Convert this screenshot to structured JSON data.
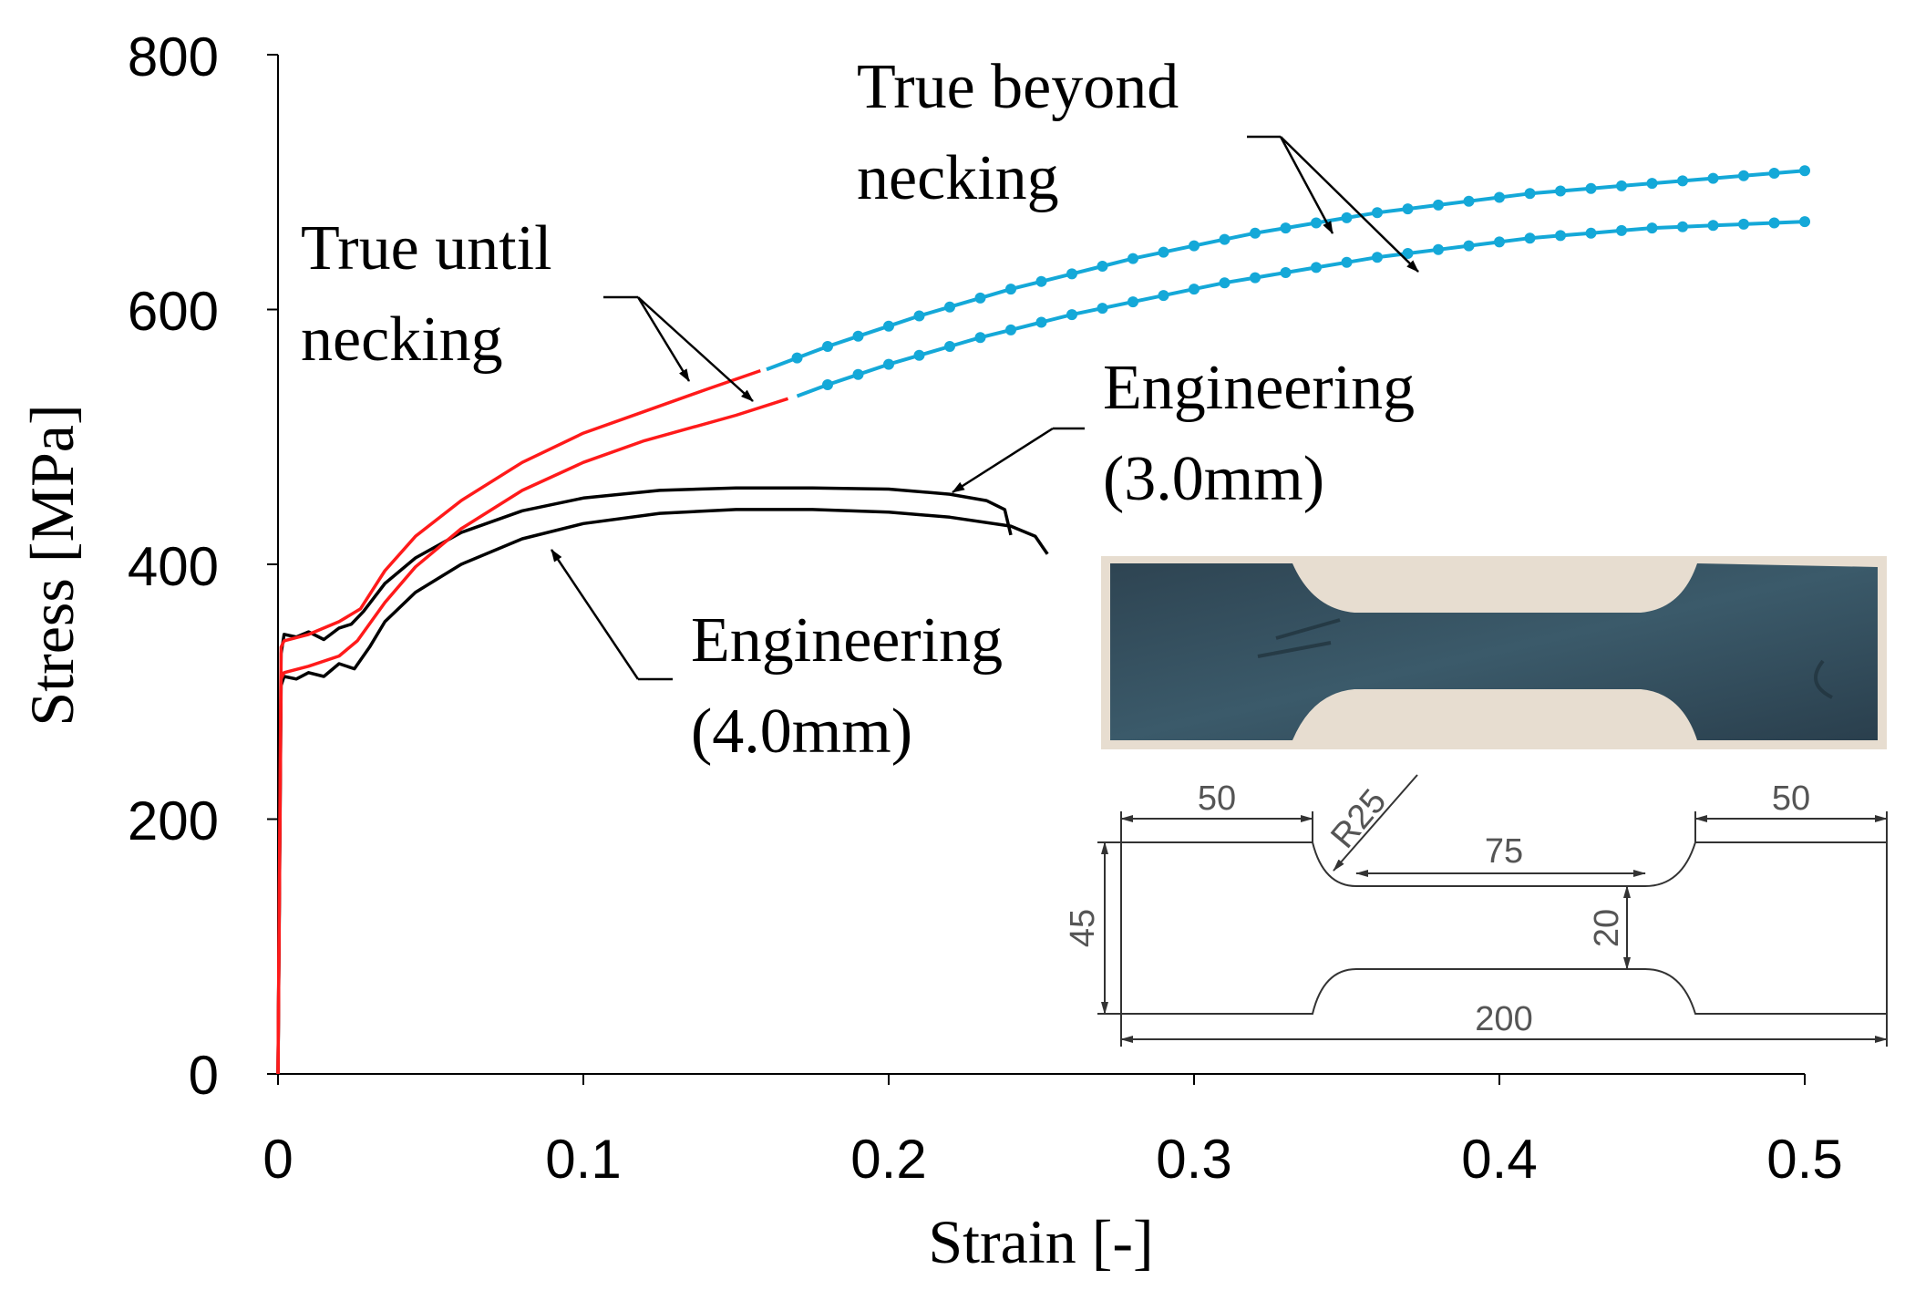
{
  "chart_data": {
    "type": "line",
    "xlabel": "Strain [-]",
    "ylabel": "Stress [MPa]",
    "xlim": [
      0,
      0.5
    ],
    "ylim": [
      0,
      800
    ],
    "xticks": [
      "0",
      "0.1",
      "0.2",
      "0.3",
      "0.4",
      "0.5"
    ],
    "yticks": [
      "0",
      "200",
      "400",
      "600",
      "800"
    ],
    "grid": false,
    "colors": {
      "engineering": "#000000",
      "true_until": "#ff1a1a",
      "true_beyond": "#14a8d8"
    },
    "series": [
      {
        "group": "engineering",
        "x": [
          0,
          0.001,
          0.002,
          0.006,
          0.01,
          0.015,
          0.02,
          0.024,
          0.028,
          0.035,
          0.045,
          0.06,
          0.08,
          0.1,
          0.125,
          0.15,
          0.175,
          0.2,
          0.22,
          0.232,
          0.238,
          0.24
        ],
        "y": [
          0,
          330,
          345,
          343,
          347,
          341,
          350,
          353,
          363,
          385,
          405,
          425,
          442,
          452,
          458,
          460,
          460,
          459,
          455,
          450,
          443,
          423
        ]
      },
      {
        "group": "engineering",
        "x": [
          0,
          0.001,
          0.002,
          0.006,
          0.01,
          0.015,
          0.02,
          0.025,
          0.03,
          0.035,
          0.045,
          0.06,
          0.08,
          0.1,
          0.125,
          0.15,
          0.175,
          0.2,
          0.22,
          0.24,
          0.248,
          0.252
        ],
        "y": [
          0,
          305,
          312,
          310,
          315,
          312,
          322,
          318,
          335,
          355,
          378,
          400,
          420,
          432,
          440,
          443,
          443,
          441,
          437,
          430,
          422,
          408
        ]
      },
      {
        "group": "true_until",
        "x": [
          0,
          0.001,
          0.002,
          0.01,
          0.02,
          0.027,
          0.035,
          0.045,
          0.06,
          0.08,
          0.1,
          0.12,
          0.14,
          0.158
        ],
        "y": [
          0,
          335,
          340,
          345,
          355,
          365,
          395,
          422,
          450,
          480,
          503,
          520,
          537,
          552
        ]
      },
      {
        "group": "true_until",
        "x": [
          0,
          0.001,
          0.002,
          0.01,
          0.02,
          0.026,
          0.035,
          0.045,
          0.06,
          0.08,
          0.1,
          0.12,
          0.15,
          0.167
        ],
        "y": [
          0,
          310,
          315,
          320,
          328,
          340,
          370,
          398,
          428,
          458,
          480,
          497,
          517,
          530
        ]
      },
      {
        "group": "true_beyond",
        "x": [
          0.16,
          0.17,
          0.18,
          0.19,
          0.2,
          0.21,
          0.22,
          0.23,
          0.24,
          0.25,
          0.26,
          0.27,
          0.28,
          0.29,
          0.3,
          0.31,
          0.32,
          0.33,
          0.34,
          0.35,
          0.36,
          0.37,
          0.38,
          0.39,
          0.4,
          0.41,
          0.42,
          0.43,
          0.44,
          0.45,
          0.46,
          0.47,
          0.48,
          0.49,
          0.5
        ],
        "y": [
          553,
          562,
          571,
          579,
          587,
          595,
          602,
          609,
          616,
          622,
          628,
          634,
          640,
          645,
          650,
          655,
          660,
          664,
          668,
          672,
          676,
          679,
          682,
          685,
          688,
          691,
          693,
          695,
          697,
          699,
          701,
          703,
          705,
          707,
          709
        ]
      },
      {
        "group": "true_beyond",
        "x": [
          0.17,
          0.18,
          0.19,
          0.2,
          0.21,
          0.22,
          0.23,
          0.24,
          0.25,
          0.26,
          0.27,
          0.28,
          0.29,
          0.3,
          0.31,
          0.32,
          0.33,
          0.34,
          0.35,
          0.36,
          0.37,
          0.38,
          0.39,
          0.4,
          0.41,
          0.42,
          0.43,
          0.44,
          0.45,
          0.46,
          0.47,
          0.48,
          0.49,
          0.5
        ],
        "y": [
          532,
          541,
          549,
          557,
          564,
          571,
          578,
          584,
          590,
          596,
          601,
          606,
          611,
          616,
          621,
          625,
          629,
          633,
          637,
          641,
          644,
          647,
          650,
          653,
          656,
          658,
          660,
          662,
          664,
          665,
          666,
          667,
          668,
          669
        ]
      }
    ],
    "annotations": {
      "true_until": [
        "True until",
        "necking"
      ],
      "true_beyond": [
        "True beyond",
        "necking"
      ],
      "eng_30": [
        "Engineering",
        "(3.0mm)"
      ],
      "eng_40": [
        "Engineering",
        "(4.0mm)"
      ]
    }
  },
  "specimen_drawing": {
    "dims": [
      "50",
      "R25",
      "75",
      "50",
      "45",
      "20",
      "200"
    ]
  }
}
